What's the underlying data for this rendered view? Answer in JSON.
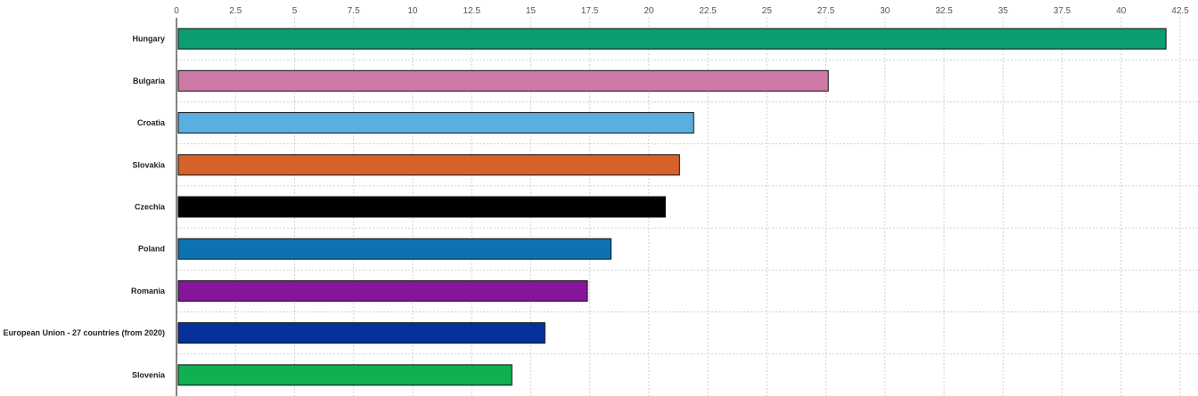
{
  "chart_data": {
    "type": "bar",
    "orientation": "horizontal",
    "categories": [
      "Hungary",
      "Bulgaria",
      "Croatia",
      "Slovakia",
      "Czechia",
      "Poland",
      "Romania",
      "European Union - 27 countries (from 2020)",
      "Slovenia"
    ],
    "values": [
      41.9,
      27.6,
      21.9,
      21.3,
      20.7,
      18.4,
      17.4,
      15.6,
      14.2
    ],
    "colors": [
      "#0a9e72",
      "#cc79a7",
      "#5aaee0",
      "#d5622a",
      "#000000",
      "#0d72b0",
      "#85169c",
      "#06309a",
      "#0fb050"
    ],
    "x_ticks": [
      "0",
      "2.5",
      "5",
      "7.5",
      "10",
      "12.5",
      "15",
      "17.5",
      "20",
      "22.5",
      "25",
      "27.5",
      "30",
      "32.5",
      "35",
      "37.5",
      "40",
      "42.5"
    ],
    "xlim": [
      0,
      42.5
    ],
    "xaxis_position": "top",
    "grid": true,
    "title": "",
    "xlabel": "",
    "ylabel": ""
  }
}
